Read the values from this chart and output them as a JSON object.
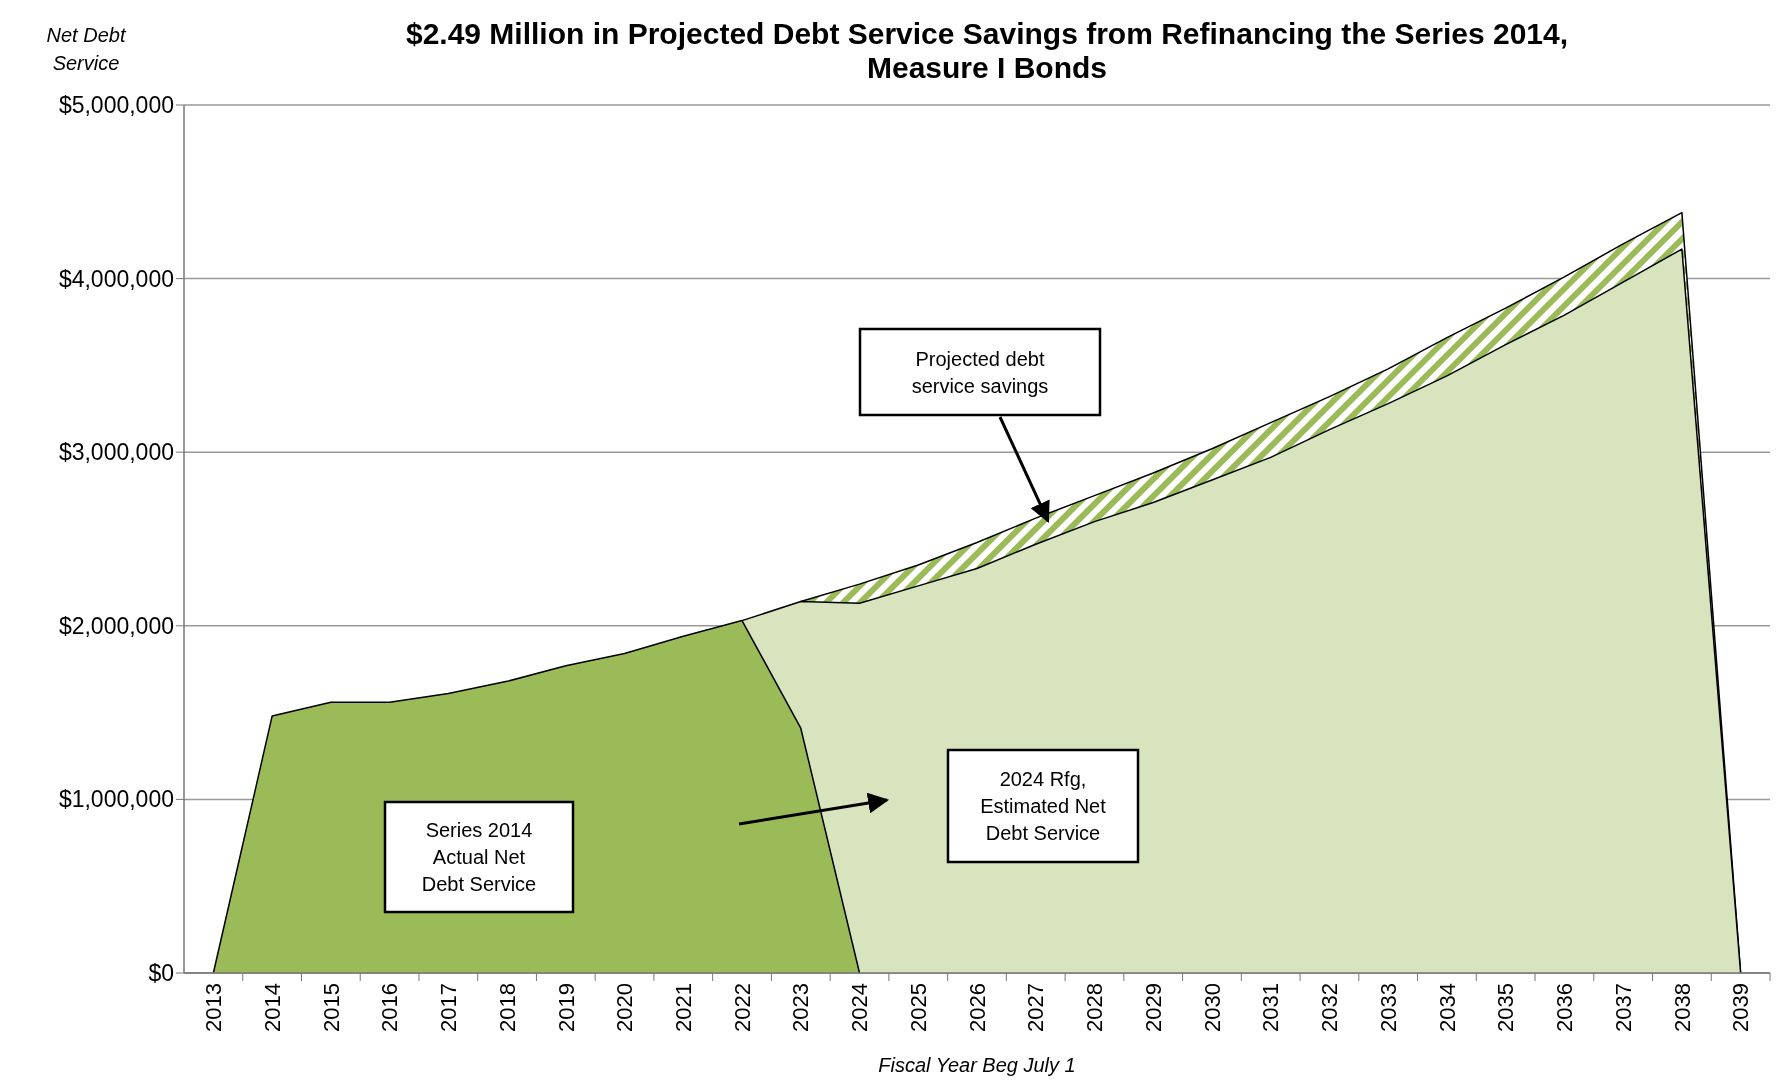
{
  "chart_data": {
    "type": "area",
    "title": "$2.49 Million in Projected Debt Service Savings from Refinancing the Series 2014, Measure I Bonds",
    "xlabel": "Fiscal Year Beg July 1",
    "ylabel": "Net Debt Service",
    "categories": [
      "2013",
      "2014",
      "2015",
      "2016",
      "2017",
      "2018",
      "2019",
      "2020",
      "2021",
      "2022",
      "2023",
      "2024",
      "2025",
      "2026",
      "2027",
      "2028",
      "2029",
      "2030",
      "2031",
      "2032",
      "2033",
      "2034",
      "2035",
      "2036",
      "2037",
      "2038",
      "2039"
    ],
    "series": [
      {
        "color": "#9bbb59",
        "values": [
          null,
          null,
          null,
          null,
          null,
          null,
          null,
          null,
          null,
          null,
          2140000,
          2240000,
          2350000,
          2480000,
          2620000,
          2750000,
          2880000,
          3020000,
          3170000,
          3320000,
          3480000,
          3660000,
          3830000,
          4010000,
          4200000,
          4380000,
          0
        ]
      },
      {
        "color": "#d7e4bd",
        "values": [
          null,
          null,
          null,
          null,
          null,
          null,
          null,
          null,
          null,
          2030000,
          2140000,
          2130000,
          2230000,
          2330000,
          2470000,
          2600000,
          2710000,
          2840000,
          2970000,
          3130000,
          3280000,
          3440000,
          3620000,
          3790000,
          3980000,
          4170000,
          0
        ]
      },
      {
        "color": "#9bbb59",
        "values": [
          0,
          1480000,
          1560000,
          1560000,
          1610000,
          1680000,
          1770000,
          1840000,
          1940000,
          2030000,
          1410000,
          0,
          null,
          null,
          null,
          null,
          null,
          null,
          null,
          null,
          null,
          null,
          null,
          null,
          null,
          null,
          null
        ]
      }
    ],
    "ylim": [
      0,
      5000000
    ],
    "yticks": [
      {
        "value": 0,
        "label": "$0"
      },
      {
        "value": 1000000,
        "label": "$1,000,000"
      },
      {
        "value": 2000000,
        "label": "$2,000,000"
      },
      {
        "value": 3000000,
        "label": "$3,000,000"
      },
      {
        "value": 4000000,
        "label": "$4,000,000"
      },
      {
        "value": 5000000,
        "label": "$5,000,000"
      }
    ],
    "grid": "y",
    "annotations": [
      "Projected debt service savings",
      "2024 Rfg, Estimated Net Debt Service",
      "Series 2014 Actual Net Debt Service"
    ]
  }
}
